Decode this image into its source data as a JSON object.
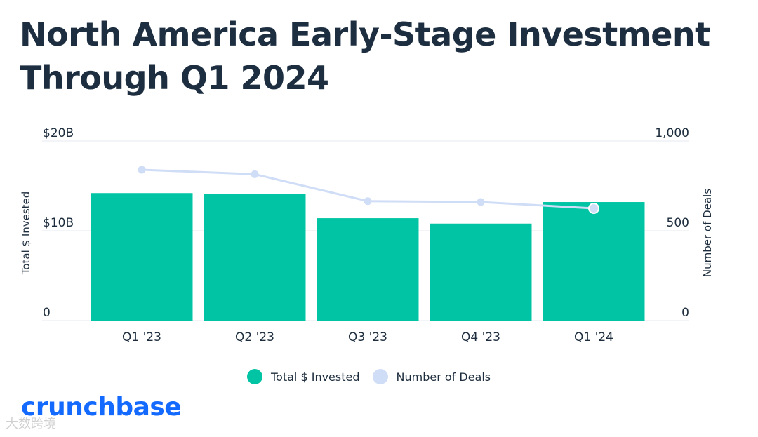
{
  "title_line1": "North America Early-Stage Investment",
  "title_line2": "Through Q1 2024",
  "brand": "crunchbase",
  "watermark": "大数跨境",
  "colors": {
    "bar": "#00c4a3",
    "line": "#d0ddf6",
    "title": "#1c2e40",
    "brand": "#146aff"
  },
  "legend": [
    {
      "label": "Total $ Invested",
      "color": "#00c4a3"
    },
    {
      "label": "Number of Deals",
      "color": "#d0ddf6"
    }
  ],
  "chart_data": {
    "type": "bar",
    "categories": [
      "Q1 '23",
      "Q2 '23",
      "Q3 '23",
      "Q4 '23",
      "Q1 '24"
    ],
    "series": [
      {
        "name": "Total $ Invested",
        "type": "bar",
        "axis": "left",
        "values": [
          14.2,
          14.1,
          11.4,
          10.8,
          13.2
        ]
      },
      {
        "name": "Number of Deals",
        "type": "line",
        "axis": "right",
        "values": [
          840,
          815,
          665,
          660,
          625
        ]
      }
    ],
    "y_left": {
      "label": "Total $ Invested",
      "range": [
        0,
        20
      ],
      "ticks": [
        "0",
        "$10B",
        "$20B"
      ]
    },
    "y_right": {
      "label": "Number of Deals",
      "range": [
        0,
        1000
      ],
      "ticks": [
        "0",
        "500",
        "1,000"
      ]
    },
    "grid": true,
    "legend_position": "bottom"
  }
}
